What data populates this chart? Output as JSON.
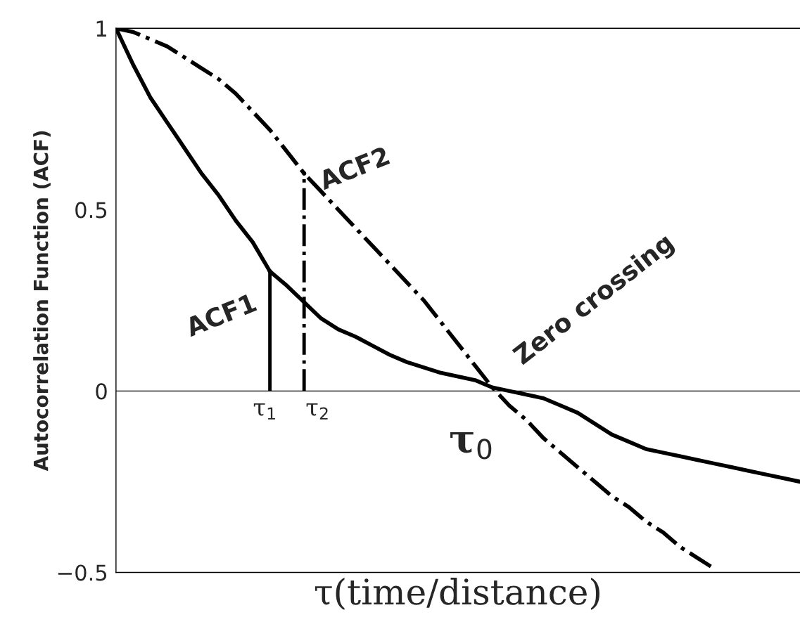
{
  "chart_data": {
    "type": "line",
    "xlabel": "τ(time/distance)",
    "ylabel": "Autocorrelation Function (ACF)",
    "categories": [
      null,
      null,
      null,
      null,
      null,
      null,
      null,
      null,
      null,
      null,
      null,
      null,
      null,
      null,
      null,
      null,
      null,
      null,
      null,
      null,
      null,
      null,
      null,
      null,
      null,
      null,
      null,
      null,
      null,
      null,
      null,
      null,
      null,
      null,
      null,
      null,
      null,
      null,
      null,
      null,
      null
    ],
    "ylim": [
      -0.5,
      1
    ],
    "yticks": [
      {
        "value": -0.5,
        "label": "−0.5"
      },
      0,
      0.5,
      1
    ],
    "marker": "none",
    "series": [
      {
        "color": "#000000",
        "line_style": "solid",
        "values": [
          1.0,
          0.9,
          0.81,
          0.74,
          0.67,
          0.6,
          0.54,
          0.47,
          0.41,
          0.33,
          0.29,
          0.245,
          0.2,
          0.17,
          0.15,
          0.125,
          0.1,
          0.08,
          0.065,
          0.05,
          0.04,
          0.03,
          0.01,
          0.0,
          -0.01,
          -0.02,
          -0.04,
          -0.06,
          -0.09,
          -0.12,
          -0.14,
          -0.16,
          -0.17,
          -0.18,
          -0.19,
          -0.2,
          -0.21,
          -0.22,
          -0.23,
          -0.24,
          -0.25
        ]
      },
      {
        "color": "#000000",
        "line_style": "dashed",
        "values": [
          1.0,
          0.99,
          0.97,
          0.95,
          0.92,
          0.89,
          0.86,
          0.82,
          0.77,
          0.72,
          0.66,
          0.6,
          0.55,
          0.5,
          0.45,
          0.4,
          0.35,
          0.3,
          0.25,
          0.19,
          0.13,
          0.07,
          0.01,
          -0.04,
          -0.08,
          -0.13,
          -0.17,
          -0.21,
          -0.25,
          -0.29,
          -0.32,
          -0.36,
          -0.39,
          -0.43,
          -0.46,
          -0.49,
          null,
          null,
          null,
          null,
          null
        ]
      },
      {
        "type": "lollipop",
        "color": "#000000",
        "line_style": "solid",
        "values": [
          null,
          null,
          null,
          null,
          null,
          null,
          null,
          null,
          null,
          0.33,
          null,
          null,
          null,
          null,
          null,
          null,
          null,
          null,
          null,
          null,
          null,
          null,
          null,
          null,
          null,
          null,
          null,
          null,
          null,
          null,
          null,
          null,
          null,
          null,
          null,
          null,
          null,
          null,
          null,
          null,
          null
        ]
      },
      {
        "type": "lollipop",
        "color": "#000000",
        "line_style": "dashed",
        "values": [
          null,
          null,
          null,
          null,
          null,
          null,
          null,
          null,
          null,
          null,
          null,
          0.6,
          null,
          null,
          null,
          null,
          null,
          null,
          null,
          null,
          null,
          null,
          null,
          null,
          null,
          null,
          null,
          null,
          null,
          null,
          null,
          null,
          null,
          null,
          null,
          null,
          null,
          null,
          null,
          null,
          null
        ]
      }
    ],
    "ref_lines": [
      {
        "axis": "y",
        "value": 0,
        "color": "#000000"
      }
    ],
    "annotations": [
      "ACF1",
      "ACF2",
      "Zero crossing",
      "τ$_{1}$",
      "τ$_{2}$",
      "τ$_{0}$"
    ]
  }
}
